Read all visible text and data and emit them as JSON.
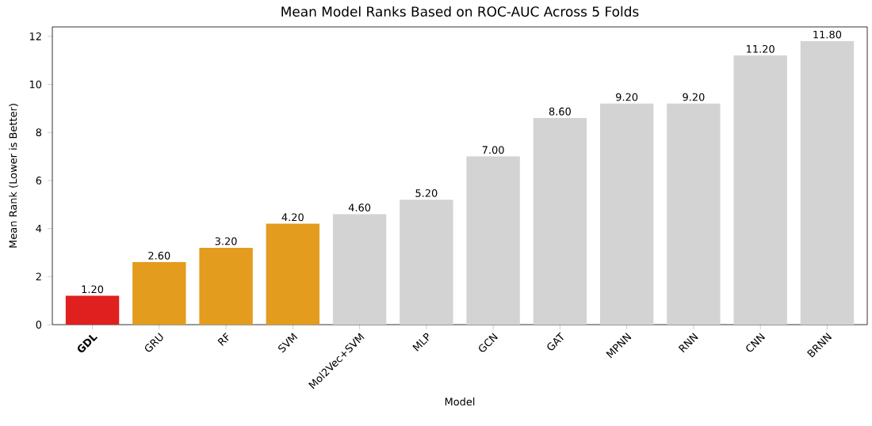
{
  "chart_data": {
    "type": "bar",
    "title": "Mean Model Ranks Based on ROC-AUC Across 5 Folds",
    "xlabel": "Model",
    "ylabel": "Mean Rank (Lower is Better)",
    "categories": [
      "**GDL**",
      "GRU",
      "RF",
      "SVM",
      "Mol2Vec+SVM",
      "MLP",
      "GCN",
      "GAT",
      "MPNN",
      "RNN",
      "CNN",
      "BRNN"
    ],
    "values": [
      1.2,
      2.6,
      3.2,
      4.2,
      4.6,
      5.2,
      7.0,
      8.6,
      9.2,
      9.2,
      11.2,
      11.8
    ],
    "value_labels": [
      "1.20",
      "2.60",
      "3.20",
      "4.20",
      "4.60",
      "5.20",
      "7.00",
      "8.60",
      "9.20",
      "9.20",
      "11.20",
      "11.80"
    ],
    "colors": [
      "#e0201e",
      "#e39c1e",
      "#e39c1e",
      "#e39c1e",
      "#d3d3d3",
      "#d3d3d3",
      "#d3d3d3",
      "#d3d3d3",
      "#d3d3d3",
      "#d3d3d3",
      "#d3d3d3",
      "#d3d3d3"
    ],
    "ylim": [
      0,
      12.39
    ],
    "yticks": [
      0,
      2,
      4,
      6,
      8,
      10,
      12
    ]
  }
}
